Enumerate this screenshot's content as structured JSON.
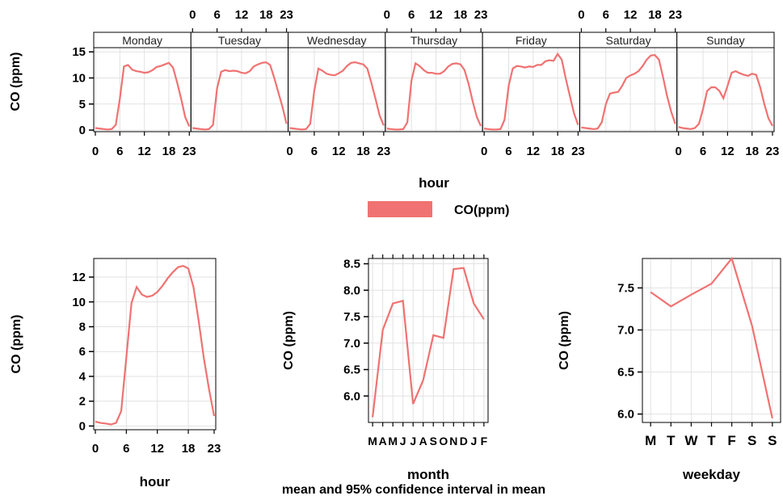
{
  "line_color": "#f07272",
  "strip_color": "#000000",
  "caption": "mean and 95% confidence interval in mean",
  "legend": {
    "label": "CO(ppm)"
  },
  "chart_data": [
    {
      "type": "line",
      "panel": "day_hour",
      "xlabel": "hour",
      "ylabel": "CO (ppm)",
      "ylim": [
        -0.3,
        15.5
      ],
      "yticks": [
        0,
        5,
        10,
        15
      ],
      "xticks": [
        "0",
        "6",
        "12",
        "18",
        "23"
      ],
      "days": [
        {
          "name": "Monday",
          "values": [
            0.4,
            0.3,
            0.2,
            0.1,
            0.2,
            1.0,
            6.0,
            12.2,
            12.5,
            11.6,
            11.3,
            11.2,
            11.0,
            11.1,
            11.5,
            12.1,
            12.3,
            12.6,
            12.9,
            12.0,
            9.2,
            6.0,
            2.5,
            0.7
          ]
        },
        {
          "name": "Tuesday",
          "values": [
            0.4,
            0.3,
            0.2,
            0.1,
            0.2,
            1.0,
            8.0,
            11.2,
            11.5,
            11.3,
            11.4,
            11.3,
            11.0,
            10.9,
            11.3,
            12.2,
            12.6,
            12.9,
            13.0,
            12.5,
            10.0,
            7.2,
            4.5,
            1.2
          ]
        },
        {
          "name": "Wednesday",
          "values": [
            0.4,
            0.3,
            0.2,
            0.1,
            0.2,
            1.2,
            7.5,
            11.8,
            11.4,
            10.8,
            10.6,
            10.5,
            10.9,
            11.4,
            12.3,
            12.9,
            13.0,
            12.8,
            12.6,
            11.8,
            9.0,
            6.0,
            2.8,
            0.9
          ]
        },
        {
          "name": "Thursday",
          "values": [
            0.3,
            0.2,
            0.1,
            0.1,
            0.2,
            1.5,
            9.5,
            12.8,
            12.3,
            11.5,
            11.0,
            11.0,
            10.8,
            10.8,
            11.3,
            12.2,
            12.7,
            12.8,
            12.6,
            11.5,
            8.8,
            5.5,
            2.5,
            0.8
          ]
        },
        {
          "name": "Friday",
          "values": [
            0.3,
            0.2,
            0.1,
            0.1,
            0.2,
            2.0,
            8.5,
            11.8,
            12.3,
            12.2,
            12.0,
            12.2,
            12.1,
            12.5,
            12.5,
            13.2,
            13.4,
            13.3,
            14.6,
            13.5,
            9.8,
            6.5,
            3.2,
            1.0
          ]
        },
        {
          "name": "Saturday",
          "values": [
            0.5,
            0.4,
            0.3,
            0.2,
            0.3,
            1.5,
            5.0,
            7.0,
            7.2,
            7.3,
            8.5,
            10.0,
            10.5,
            10.8,
            11.3,
            12.3,
            13.5,
            14.3,
            14.4,
            13.5,
            10.2,
            6.5,
            3.5,
            1.2
          ]
        },
        {
          "name": "Sunday",
          "values": [
            0.6,
            0.4,
            0.3,
            0.2,
            0.4,
            1.2,
            4.0,
            7.5,
            8.2,
            8.2,
            7.5,
            6.1,
            8.5,
            11.0,
            11.3,
            10.9,
            10.6,
            10.4,
            10.8,
            10.6,
            8.2,
            5.0,
            2.3,
            0.8
          ]
        }
      ]
    },
    {
      "type": "line",
      "panel": "hour",
      "xlabel": "hour",
      "ylabel": "CO (ppm)",
      "ylim": [
        -0.3,
        13.5
      ],
      "yticks": [
        0,
        2,
        4,
        6,
        8,
        10,
        12
      ],
      "xticks": [
        "0",
        "6",
        "12",
        "18",
        "23"
      ],
      "x": [
        0,
        1,
        2,
        3,
        4,
        5,
        6,
        7,
        8,
        9,
        10,
        11,
        12,
        13,
        14,
        15,
        16,
        17,
        18,
        19,
        20,
        21,
        22,
        23
      ],
      "values": [
        0.35,
        0.25,
        0.2,
        0.12,
        0.25,
        1.2,
        5.5,
        9.9,
        11.2,
        10.6,
        10.4,
        10.5,
        10.8,
        11.3,
        11.9,
        12.4,
        12.8,
        12.9,
        12.7,
        11.2,
        8.5,
        5.5,
        3.0,
        0.8
      ]
    },
    {
      "type": "line",
      "panel": "month",
      "xlabel": "month",
      "ylabel": "CO (ppm)",
      "ylim": [
        5.5,
        8.6
      ],
      "yticks": [
        6.0,
        6.5,
        7.0,
        7.5,
        8.0,
        8.5
      ],
      "categories": [
        "M",
        "A",
        "M",
        "J",
        "J",
        "A",
        "S",
        "O",
        "N",
        "D",
        "J",
        "F"
      ],
      "values": [
        5.6,
        7.25,
        7.75,
        7.8,
        5.85,
        6.3,
        7.15,
        7.1,
        8.4,
        8.42,
        7.75,
        7.45
      ]
    },
    {
      "type": "line",
      "panel": "weekday",
      "xlabel": "weekday",
      "ylabel": "CO (ppm)",
      "ylim": [
        5.9,
        7.85
      ],
      "yticks": [
        6.0,
        6.5,
        7.0,
        7.5
      ],
      "categories": [
        "M",
        "T",
        "W",
        "T",
        "F",
        "S",
        "S"
      ],
      "values": [
        7.45,
        7.28,
        7.42,
        7.55,
        7.85,
        7.05,
        5.95
      ]
    }
  ]
}
